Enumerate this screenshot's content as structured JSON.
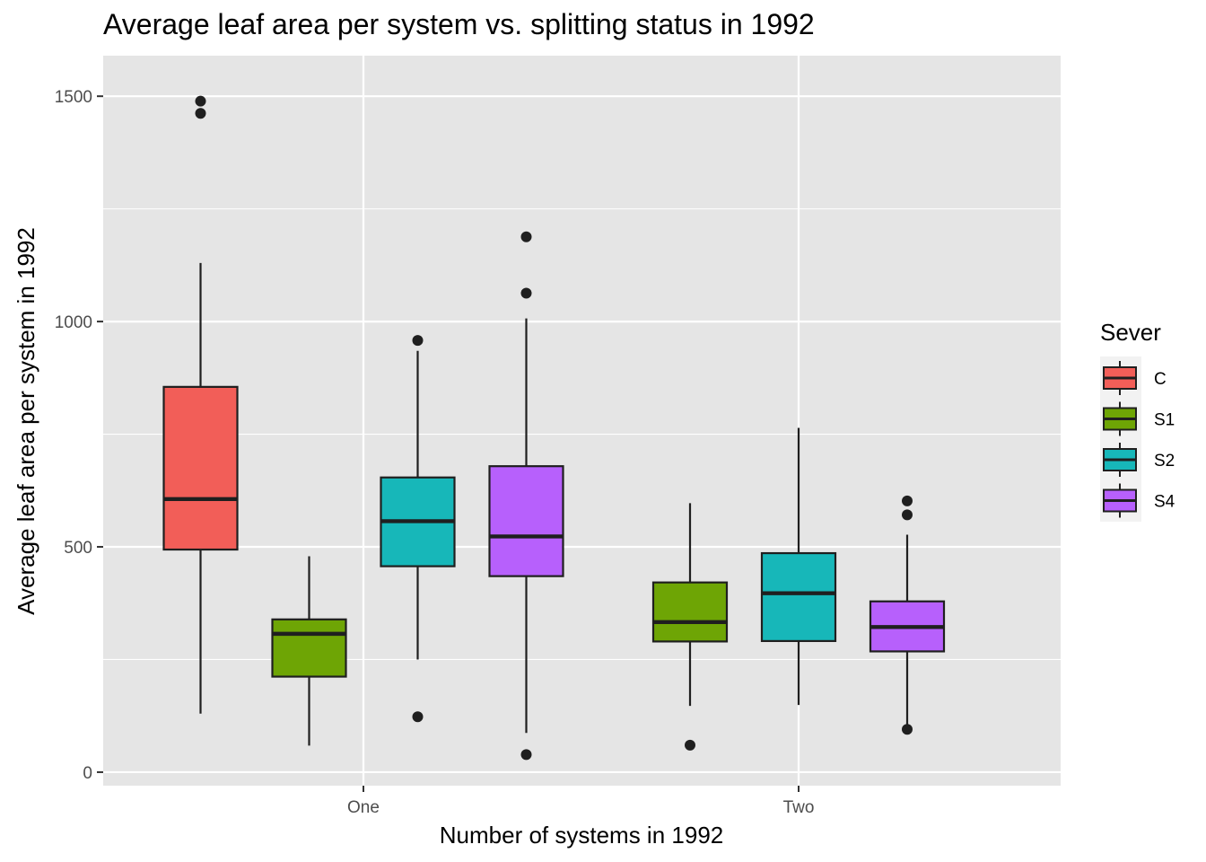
{
  "chart_data": {
    "type": "boxplot",
    "title": "Average leaf area per system vs. splitting status in 1992",
    "xlabel": "Number of systems in 1992",
    "ylabel": "Average leaf area per system in 1992",
    "categories": [
      "One",
      "Two"
    ],
    "y_ticks": [
      0,
      500,
      1000,
      1500
    ],
    "ylim": [
      -30,
      1590
    ],
    "grid": true,
    "legend": {
      "title": "Sever",
      "position": "right",
      "entries": [
        "C",
        "S1",
        "S2",
        "S4"
      ]
    },
    "colors": {
      "C": "#f25e58",
      "S1": "#6ea505",
      "S2": "#17b7b9",
      "S4": "#b760fc",
      "panel": "#e5e5e5",
      "grid": "#ffffff",
      "outline": "#1f1f1f"
    },
    "series": [
      {
        "name": "C",
        "boxes": [
          {
            "category": "One",
            "min": 130,
            "q1": 494,
            "median": 606,
            "q3": 855,
            "max": 1130,
            "outliers": [
              1462,
              1489
            ]
          }
        ]
      },
      {
        "name": "S1",
        "boxes": [
          {
            "category": "One",
            "min": 59,
            "q1": 212,
            "median": 307,
            "q3": 339,
            "max": 479,
            "outliers": []
          },
          {
            "category": "Two",
            "min": 147,
            "q1": 290,
            "median": 333,
            "q3": 421,
            "max": 597,
            "outliers": [
              60
            ]
          }
        ]
      },
      {
        "name": "S2",
        "boxes": [
          {
            "category": "One",
            "min": 250,
            "q1": 457,
            "median": 557,
            "q3": 654,
            "max": 935,
            "outliers": [
              123,
              958
            ]
          },
          {
            "category": "Two",
            "min": 149,
            "q1": 291,
            "median": 397,
            "q3": 486,
            "max": 764,
            "outliers": []
          }
        ]
      },
      {
        "name": "S4",
        "boxes": [
          {
            "category": "One",
            "min": 87,
            "q1": 435,
            "median": 523,
            "q3": 679,
            "max": 1007,
            "outliers": [
              39,
              1063,
              1188
            ]
          },
          {
            "category": "Two",
            "min": 106,
            "q1": 268,
            "median": 322,
            "q3": 379,
            "max": 527,
            "outliers": [
              95,
              571,
              602
            ]
          }
        ]
      }
    ]
  }
}
